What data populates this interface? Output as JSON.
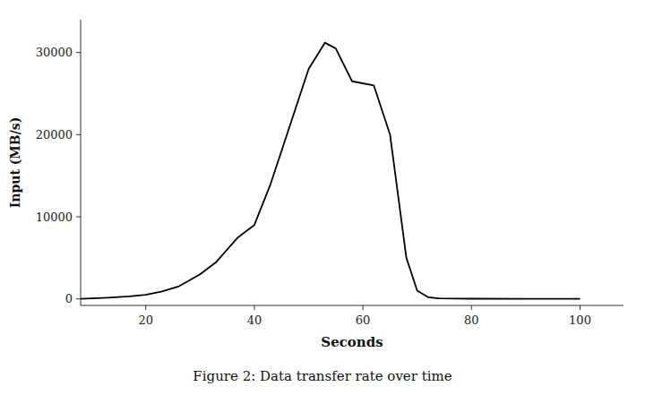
{
  "chart_data": {
    "type": "line",
    "xlabel": "Seconds",
    "ylabel": "Input (MB/s)",
    "caption": "Figure 2: Data transfer rate over time",
    "x": [
      8,
      10,
      13,
      17,
      20,
      23,
      26,
      30,
      33,
      37,
      40,
      43,
      47,
      50,
      53,
      55,
      58,
      62,
      65,
      68,
      70,
      72,
      74,
      80,
      90,
      100
    ],
    "values": [
      0,
      50,
      150,
      300,
      500,
      900,
      1500,
      3000,
      4500,
      7500,
      9000,
      14000,
      22000,
      28000,
      31200,
      30500,
      26500,
      26000,
      20000,
      5000,
      1000,
      200,
      50,
      20,
      5,
      0
    ],
    "xlim": [
      8,
      108
    ],
    "ylim": [
      -800,
      34000
    ],
    "xticks": [
      20,
      40,
      60,
      80,
      100
    ],
    "yticks": [
      0,
      10000,
      20000,
      30000
    ],
    "color": "#000000",
    "grid": false
  }
}
